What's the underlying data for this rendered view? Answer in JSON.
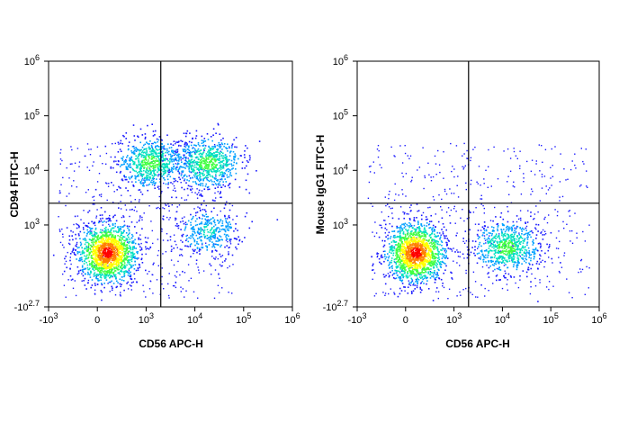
{
  "chart_data": [
    {
      "type": "scatter",
      "plot_style": "flow-cytometry pseudocolor dot plot with quadrant gates",
      "xlabel": "CD56 APC-H",
      "ylabel": "CD94 FITC-H",
      "x_scale": "biexponential",
      "y_scale": "biexponential",
      "x_ticks": [
        "-10^3",
        "0",
        "10^3",
        "10^4",
        "10^5",
        "10^6"
      ],
      "y_ticks": [
        "-10^2.7",
        "10^3",
        "10^4",
        "10^5",
        "10^6"
      ],
      "gate_x": 2000,
      "gate_y": 2500,
      "colormap": [
        "#1a1aff",
        "#00a0ff",
        "#00e0c0",
        "#40ff40",
        "#ffff00",
        "#ff8000",
        "#ff0000"
      ],
      "populations": [
        {
          "x": 200,
          "y": 500,
          "density": "high"
        },
        {
          "x": 1200,
          "y": 14000,
          "density": "medium"
        },
        {
          "x": 18000,
          "y": 14000,
          "density": "medium"
        },
        {
          "x": 18000,
          "y": 900,
          "density": "low"
        }
      ]
    },
    {
      "type": "scatter",
      "plot_style": "flow-cytometry pseudocolor dot plot with quadrant gates",
      "xlabel": "CD56 APC-H",
      "ylabel": "Mouse IgG1 FITC-H",
      "x_scale": "biexponential",
      "y_scale": "biexponential",
      "x_ticks": [
        "-10^3",
        "0",
        "10^3",
        "10^4",
        "10^5",
        "10^6"
      ],
      "y_ticks": [
        "-10^2.7",
        "10^3",
        "10^4",
        "10^5",
        "10^6"
      ],
      "gate_x": 2000,
      "gate_y": 2500,
      "colormap": [
        "#1a1aff",
        "#00a0ff",
        "#00e0c0",
        "#40ff40",
        "#ffff00",
        "#ff8000",
        "#ff0000"
      ],
      "populations": [
        {
          "x": 200,
          "y": 500,
          "density": "high"
        },
        {
          "x": 12000,
          "y": 600,
          "density": "medium"
        }
      ]
    }
  ]
}
